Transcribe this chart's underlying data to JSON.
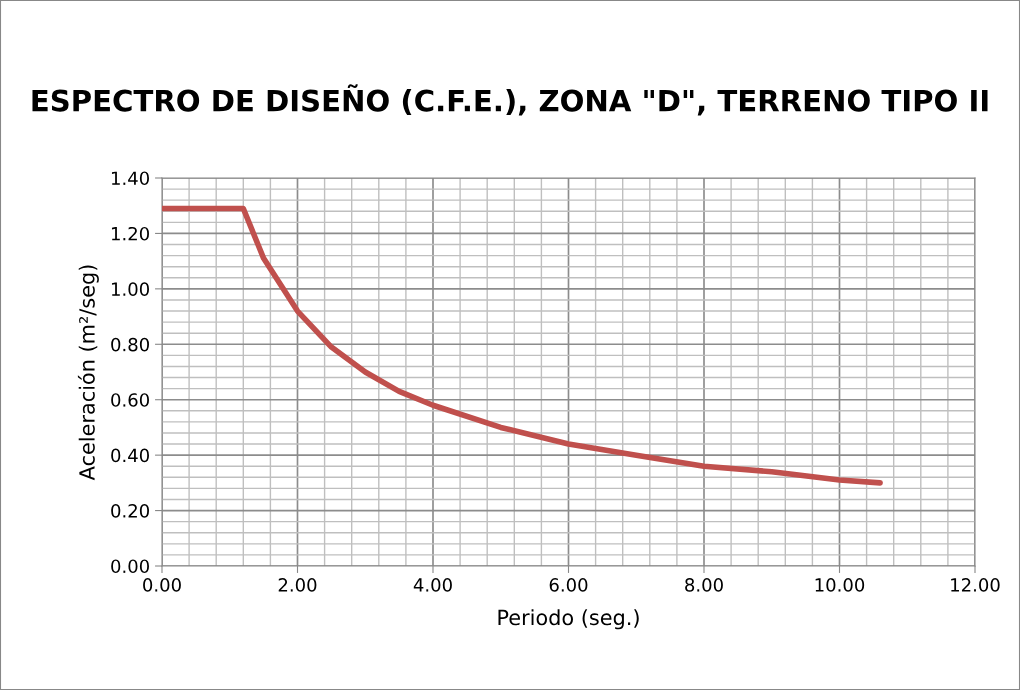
{
  "chart_data": {
    "type": "line",
    "title": "ESPECTRO DE DISEÑO (C.F.E.), ZONA \"D\", TERRENO TIPO II",
    "xlabel": "Periodo (seg.)",
    "ylabel": "Aceleración (m²/seg)",
    "x": [
      0,
      0.5,
      1.0,
      1.2,
      1.5,
      2.0,
      2.5,
      3.0,
      3.5,
      4.0,
      5.0,
      6.0,
      7.0,
      8.0,
      9.0,
      10.0,
      10.6
    ],
    "series": [
      {
        "color": "#c0504d",
        "values": [
          1.29,
          1.29,
          1.29,
          1.29,
          1.11,
          0.92,
          0.79,
          0.7,
          0.63,
          0.58,
          0.5,
          0.44,
          0.4,
          0.36,
          0.34,
          0.31,
          0.3
        ]
      }
    ],
    "xlim": [
      0,
      12
    ],
    "xticks": [
      {
        "value": 0,
        "label": "0.00"
      },
      {
        "value": 2,
        "label": "2.00"
      },
      {
        "value": 4,
        "label": "4.00"
      },
      {
        "value": 6,
        "label": "6.00"
      },
      {
        "value": 8,
        "label": "8.00"
      },
      {
        "value": 10,
        "label": "10.00"
      },
      {
        "value": 12,
        "label": "12.00"
      }
    ],
    "ylim": [
      0,
      1.4
    ],
    "yticks": [
      {
        "value": 0,
        "label": "0.00"
      },
      {
        "value": 0.2,
        "label": "0.20"
      },
      {
        "value": 0.4,
        "label": "0.40"
      },
      {
        "value": 0.6,
        "label": "0.60"
      },
      {
        "value": 0.8,
        "label": "0.80"
      },
      {
        "value": 1.0,
        "label": "1.00"
      },
      {
        "value": 1.2,
        "label": "1.20"
      },
      {
        "value": 1.4,
        "label": "1.40"
      }
    ],
    "grid": true,
    "marker": "none",
    "line_style": "solid"
  }
}
